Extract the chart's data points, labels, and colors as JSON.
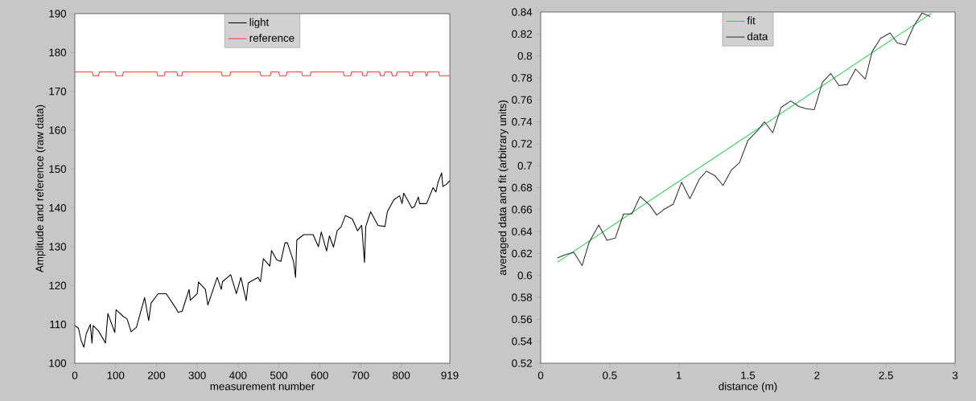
{
  "chart_data": [
    {
      "type": "line",
      "xlabel": "measurement number",
      "ylabel": "Amplitude and reference (raw data)",
      "xlim": [
        0,
        919
      ],
      "ylim": [
        100,
        190
      ],
      "xticks": [
        0,
        100,
        200,
        300,
        400,
        500,
        600,
        700,
        800,
        919
      ],
      "yticks": [
        100,
        110,
        120,
        130,
        140,
        150,
        160,
        170,
        180,
        190
      ],
      "legend": "top",
      "series": [
        {
          "name": "light",
          "color": "#000000",
          "x": [
            0,
            9,
            15,
            22,
            28,
            38,
            42,
            45,
            58,
            75,
            81,
            98,
            101,
            118,
            128,
            138,
            151,
            171,
            181,
            187,
            204,
            224,
            248,
            253,
            263,
            280,
            283,
            300,
            303,
            320,
            326,
            339,
            349,
            359,
            362,
            382,
            396,
            407,
            420,
            425,
            449,
            455,
            462,
            478,
            482,
            495,
            505,
            515,
            521,
            536,
            541,
            544,
            561,
            584,
            597,
            604,
            617,
            624,
            634,
            643,
            653,
            663,
            680,
            693,
            703,
            710,
            713,
            725,
            743,
            760,
            766,
            782,
            796,
            802,
            806,
            826,
            832,
            842,
            845,
            862,
            878,
            885,
            890,
            899,
            902,
            910,
            919
          ],
          "values": [
            109.7,
            109,
            106,
            104.1,
            107.6,
            110,
            105.2,
            109.7,
            108.3,
            105.2,
            112.8,
            107.9,
            113.8,
            112.1,
            111.4,
            108.1,
            109.3,
            116.9,
            111,
            115.5,
            117.9,
            117.9,
            114.1,
            113.1,
            113.4,
            119,
            116.2,
            117.9,
            120.9,
            119,
            115,
            119,
            122.1,
            119,
            121,
            122.8,
            117.9,
            122.1,
            116.1,
            120.7,
            122.1,
            121,
            126.9,
            125,
            129,
            126.6,
            126.2,
            131,
            131,
            126.2,
            122.1,
            131.7,
            133.1,
            133.1,
            130,
            133.8,
            128.9,
            132.8,
            129.9,
            134.1,
            135.2,
            138,
            137.2,
            134.1,
            135.5,
            125.9,
            135.2,
            139,
            135.5,
            135.2,
            139,
            142.1,
            143.1,
            141.1,
            143.8,
            140,
            140.3,
            142.8,
            141.1,
            141.1,
            145.2,
            144.1,
            146.5,
            149,
            145.5,
            146,
            147
          ]
        },
        {
          "name": "reference",
          "color": "#ff3b3b",
          "x": [
            0,
            43,
            45,
            58,
            60,
            99,
            101,
            117,
            119,
            201,
            203,
            219,
            221,
            250,
            252,
            262,
            264,
            359,
            361,
            380,
            382,
            454,
            456,
            479,
            481,
            500,
            502,
            518,
            520,
            556,
            558,
            577,
            579,
            658,
            660,
            676,
            678,
            704,
            706,
            715,
            717,
            747,
            749,
            758,
            760,
            776,
            778,
            788,
            790,
            819,
            821,
            827,
            829,
            859,
            861,
            863,
            865,
            892,
            894,
            919
          ],
          "values": [
            175,
            175,
            174,
            174,
            175,
            175,
            174,
            174,
            175,
            175,
            174,
            174,
            175,
            175,
            174,
            174,
            175,
            175,
            174,
            174,
            175,
            175,
            174,
            174,
            175,
            175,
            174,
            174,
            175,
            175,
            174,
            174,
            175,
            175,
            174,
            174,
            175,
            175,
            174,
            174,
            175,
            175,
            174,
            174,
            175,
            175,
            174,
            174,
            175,
            175,
            174,
            174,
            175,
            175,
            174,
            174,
            175,
            175,
            174,
            174
          ]
        }
      ]
    },
    {
      "type": "line",
      "xlabel": "distance (m)",
      "ylabel": "averaged data and fit (arbitrary units)",
      "xlim": [
        0,
        3
      ],
      "ylim": [
        0.52,
        0.84
      ],
      "xticks": [
        0,
        0.5,
        1,
        1.5,
        2,
        2.5,
        3
      ],
      "yticks": [
        0.52,
        0.54,
        0.56,
        0.58,
        0.6,
        0.62,
        0.64,
        0.66,
        0.68,
        0.7,
        0.72,
        0.74,
        0.76,
        0.78,
        0.8,
        0.82,
        0.84
      ],
      "legend": "top",
      "series": [
        {
          "name": "fit",
          "color": "#2ecc55",
          "x": [
            0.12,
            2.83
          ],
          "values": [
            0.612,
            0.839
          ]
        },
        {
          "name": "data",
          "color": "#333333",
          "x": [
            0.12,
            0.18,
            0.24,
            0.3,
            0.35,
            0.42,
            0.48,
            0.54,
            0.6,
            0.66,
            0.72,
            0.79,
            0.84,
            0.89,
            0.96,
            1.02,
            1.08,
            1.15,
            1.2,
            1.26,
            1.32,
            1.38,
            1.44,
            1.5,
            1.57,
            1.62,
            1.68,
            1.74,
            1.81,
            1.87,
            1.92,
            1.98,
            2.04,
            2.1,
            2.16,
            2.22,
            2.28,
            2.35,
            2.4,
            2.46,
            2.53,
            2.58,
            2.64,
            2.7,
            2.76,
            2.82
          ],
          "values": [
            0.616,
            0.619,
            0.621,
            0.609,
            0.63,
            0.646,
            0.632,
            0.634,
            0.656,
            0.656,
            0.672,
            0.664,
            0.655,
            0.66,
            0.665,
            0.685,
            0.67,
            0.688,
            0.695,
            0.691,
            0.682,
            0.696,
            0.703,
            0.723,
            0.732,
            0.74,
            0.73,
            0.753,
            0.759,
            0.754,
            0.752,
            0.751,
            0.776,
            0.784,
            0.773,
            0.774,
            0.788,
            0.779,
            0.804,
            0.816,
            0.821,
            0.812,
            0.81,
            0.827,
            0.839,
            0.836
          ]
        }
      ]
    }
  ]
}
